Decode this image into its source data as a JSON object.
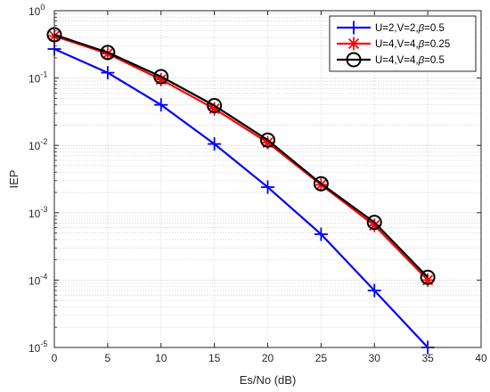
{
  "chart_data": {
    "type": "line",
    "title": "",
    "xlabel": "Es/No (dB)",
    "ylabel": "IEP",
    "xlim": [
      0,
      40
    ],
    "ylim": [
      1e-05,
      1
    ],
    "y_scale": "log",
    "grid": true,
    "legend_position": "top-right",
    "x_ticks": [
      "0",
      "5",
      "10",
      "15",
      "20",
      "25",
      "30",
      "35",
      "40"
    ],
    "y_ticks": [
      {
        "base": "10",
        "exp": "0"
      },
      {
        "base": "10",
        "exp": "-1"
      },
      {
        "base": "10",
        "exp": "-2"
      },
      {
        "base": "10",
        "exp": "-3"
      },
      {
        "base": "10",
        "exp": "-4"
      },
      {
        "base": "10",
        "exp": "-5"
      }
    ],
    "x": [
      0,
      5,
      10,
      15,
      20,
      25,
      30,
      35
    ],
    "series": [
      {
        "name": "U=2,V=2,β=0.5",
        "legend_prefix": "U=2,V=2,",
        "legend_suffix": "=0.5",
        "color": "#0000ff",
        "marker": "plus",
        "values": [
          0.27,
          0.12,
          0.04,
          0.0105,
          0.0024,
          0.00048,
          7e-05,
          1e-05
        ]
      },
      {
        "name": "U=4,V=4,β=0.25",
        "legend_prefix": "U=4,V=4,",
        "legend_suffix": "=0.25",
        "color": "#ff0000",
        "marker": "asterisk",
        "values": [
          0.42,
          0.23,
          0.095,
          0.035,
          0.011,
          0.0026,
          0.00065,
          0.0001
        ]
      },
      {
        "name": "U=4,V=4,β=0.5",
        "legend_prefix": "U=4,V=4,",
        "legend_suffix": "=0.5",
        "color": "#000000",
        "marker": "circle",
        "values": [
          0.44,
          0.24,
          0.105,
          0.039,
          0.012,
          0.0027,
          0.00072,
          0.00011
        ]
      }
    ]
  }
}
